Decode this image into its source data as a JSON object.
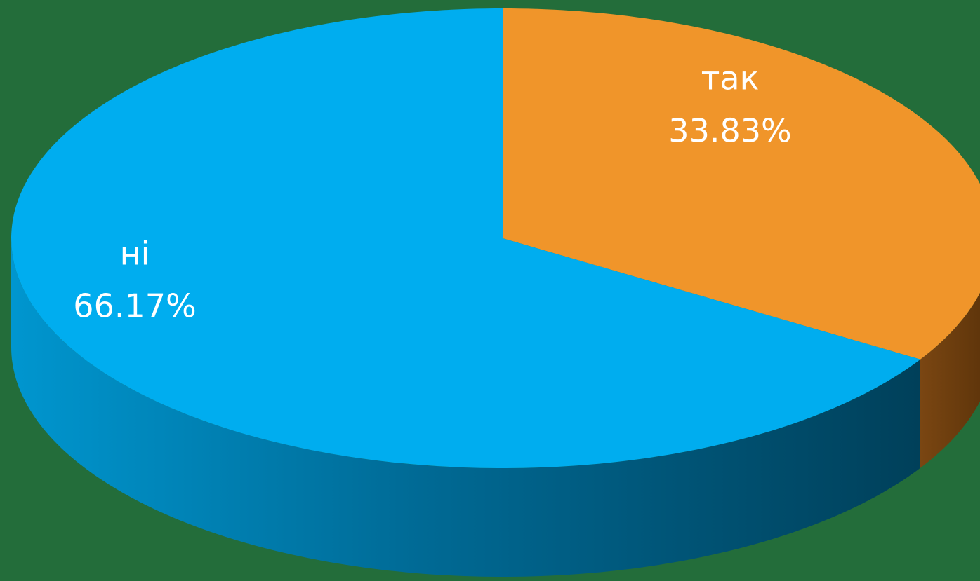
{
  "chart_data": {
    "type": "pie",
    "categories": [
      "так",
      "ні"
    ],
    "values": [
      33.83,
      66.17
    ],
    "value_labels": [
      "33.83%",
      "66.17%"
    ],
    "colors": [
      "#f0952a",
      "#00adef"
    ]
  }
}
